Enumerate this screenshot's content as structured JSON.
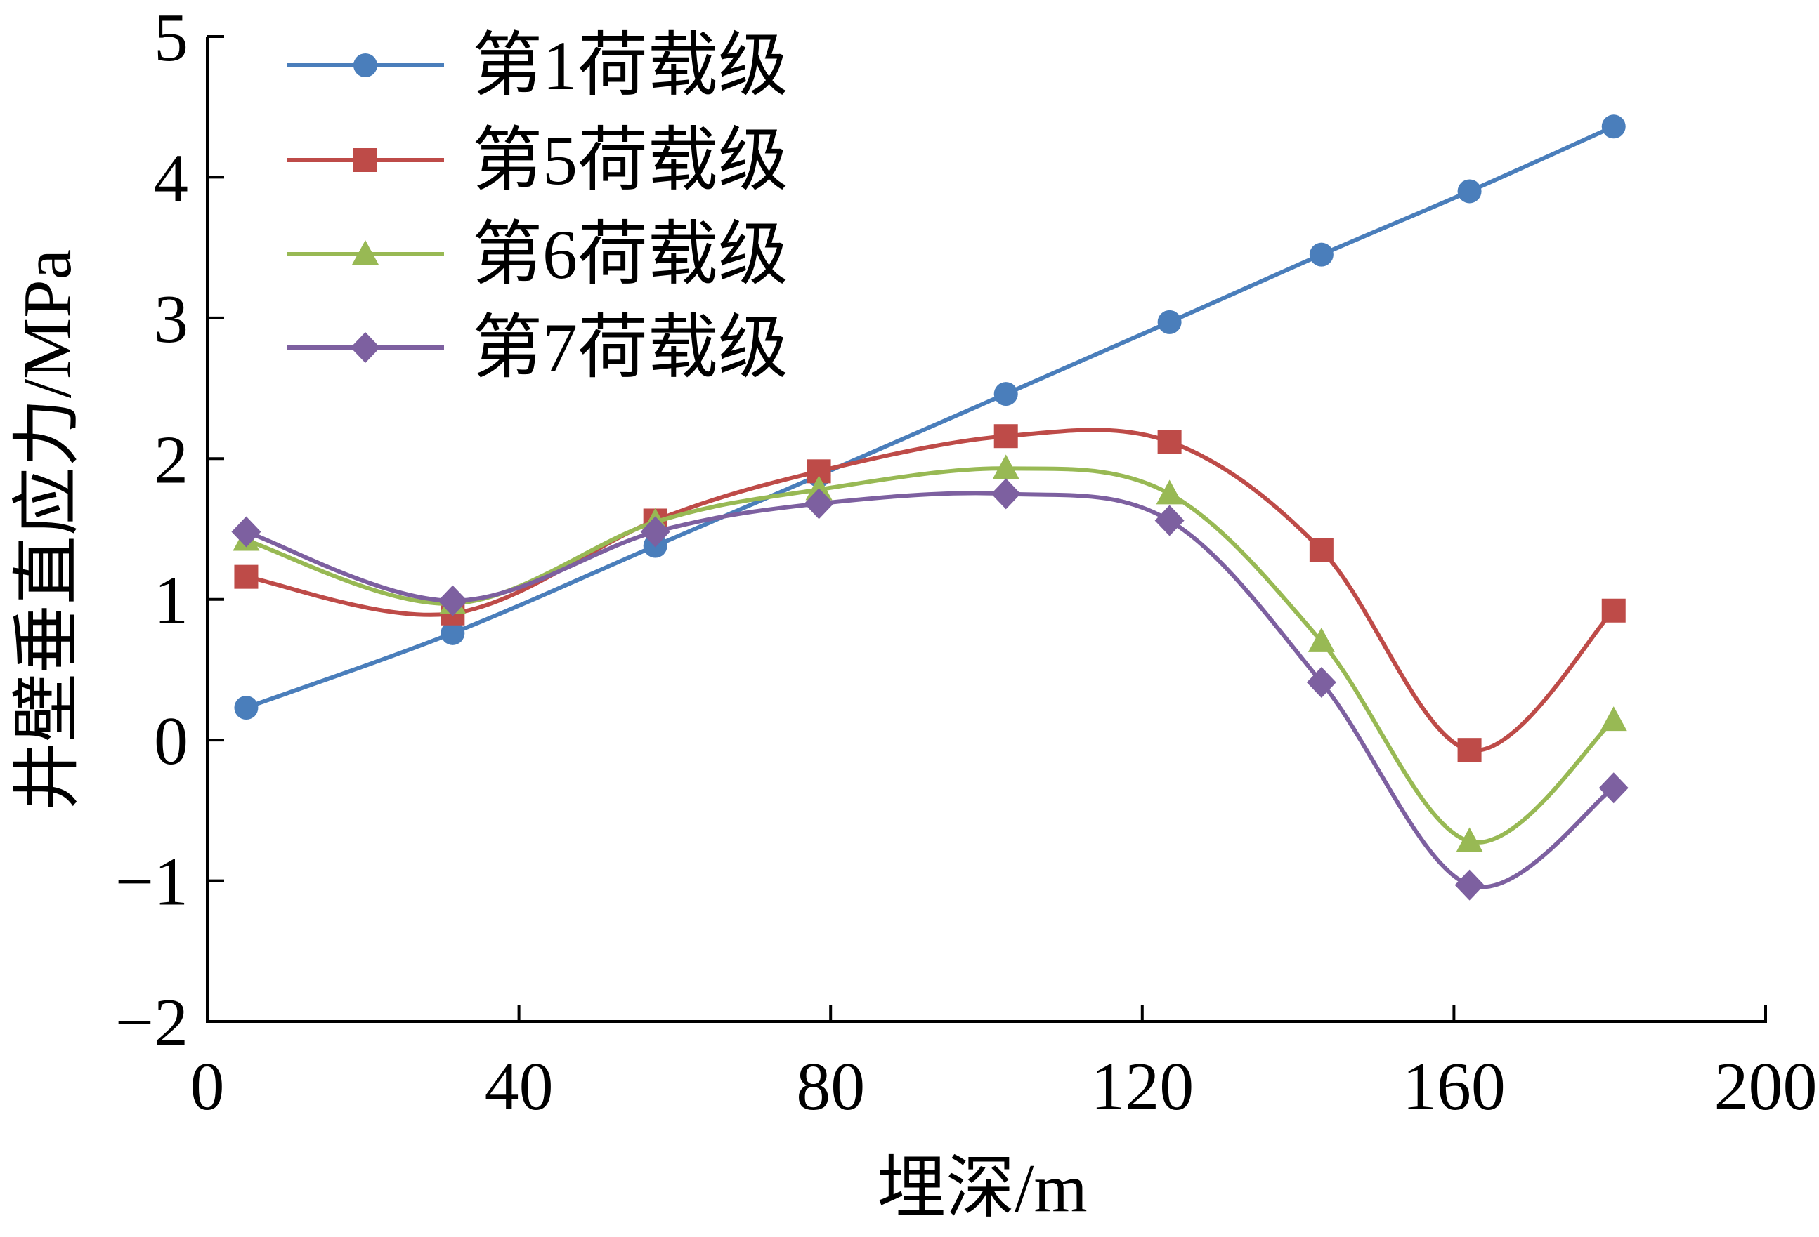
{
  "chart_data": {
    "type": "line",
    "xlabel": "埋深/m",
    "ylabel": "井壁垂直应力/MPa",
    "xlim": [
      0,
      200
    ],
    "ylim": [
      -2,
      5
    ],
    "xticks": [
      0,
      40,
      80,
      120,
      160,
      200
    ],
    "yticks": [
      -2,
      -1,
      0,
      1,
      2,
      3,
      4,
      5
    ],
    "xtick_labels": [
      "0",
      "40",
      "80",
      "120",
      "160",
      "200"
    ],
    "ytick_labels": [
      "−2",
      "−1",
      "0",
      "1",
      "2",
      "3",
      "4",
      "5"
    ],
    "grid": false,
    "legend_position": "top-left",
    "x": [
      5,
      31.5,
      57.5,
      78.5,
      102.5,
      123.5,
      143,
      162,
      180.5
    ],
    "series": [
      {
        "name": "第1荷载级",
        "marker": "circle",
        "color": "#4a7ebb",
        "values": [
          0.23,
          0.76,
          1.38,
          1.88,
          2.46,
          2.97,
          3.45,
          3.9,
          4.36
        ]
      },
      {
        "name": "第5荷载级",
        "marker": "square",
        "color": "#be4b48",
        "values": [
          1.16,
          0.9,
          1.56,
          1.91,
          2.16,
          2.12,
          1.35,
          -0.07,
          0.92
        ]
      },
      {
        "name": "第6荷载级",
        "marker": "triangle",
        "color": "#98b954",
        "values": [
          1.42,
          0.97,
          1.55,
          1.78,
          1.93,
          1.75,
          0.7,
          -0.72,
          0.14
        ]
      },
      {
        "name": "第7荷载级",
        "marker": "diamond",
        "color": "#7d60a0",
        "values": [
          1.48,
          0.99,
          1.48,
          1.68,
          1.75,
          1.56,
          0.41,
          -1.03,
          -0.34
        ]
      }
    ]
  }
}
